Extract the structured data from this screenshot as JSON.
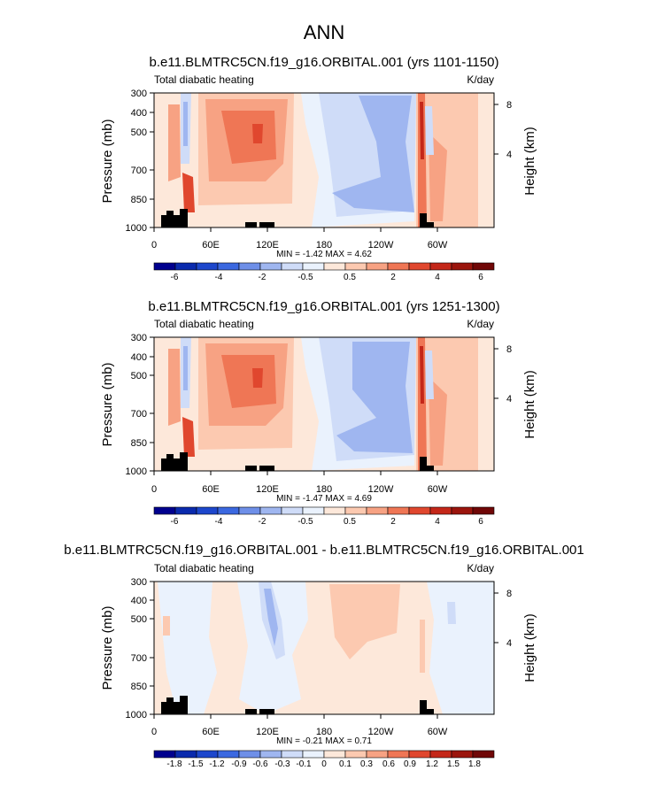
{
  "figure_title": "ANN",
  "chart_data": [
    {
      "type": "heatmap",
      "title": "b.e11.BLMTRC5CN.f19_g16.ORBITAL.001 (yrs 1101-1150)",
      "left_label": "Total diabatic heating",
      "units": "K/day",
      "ylabel": "Pressure (mb)",
      "right_label": "Height (km)",
      "x_ticks": [
        "0",
        "60E",
        "120E",
        "180",
        "120W",
        "60W"
      ],
      "y_ticks": [
        "300",
        "400",
        "500",
        "700",
        "850",
        "1000"
      ],
      "right_ticks": [
        "8",
        "4"
      ],
      "ylim": [
        1000,
        300
      ],
      "stats": "MIN = -1.42  MAX =  4.62",
      "min": -1.42,
      "max": 4.62,
      "colorbar_labels": [
        "-6",
        "-4",
        "-2",
        "-0.5",
        "0.5",
        "2",
        "4",
        "6"
      ],
      "colorbar_levels": [
        -6,
        -5,
        -4,
        -3,
        -2,
        -1,
        -0.5,
        0,
        0.5,
        1,
        2,
        3,
        4,
        5,
        6
      ]
    },
    {
      "type": "heatmap",
      "title": "b.e11.BLMTRC5CN.f19_g16.ORBITAL.001 (yrs 1251-1300)",
      "left_label": "Total diabatic heating",
      "units": "K/day",
      "ylabel": "Pressure (mb)",
      "right_label": "Height (km)",
      "x_ticks": [
        "0",
        "60E",
        "120E",
        "180",
        "120W",
        "60W"
      ],
      "y_ticks": [
        "300",
        "400",
        "500",
        "700",
        "850",
        "1000"
      ],
      "right_ticks": [
        "8",
        "4"
      ],
      "ylim": [
        1000,
        300
      ],
      "stats": "MIN = -1.47  MAX =  4.69",
      "min": -1.47,
      "max": 4.69,
      "colorbar_labels": [
        "-6",
        "-4",
        "-2",
        "-0.5",
        "0.5",
        "2",
        "4",
        "6"
      ],
      "colorbar_levels": [
        -6,
        -5,
        -4,
        -3,
        -2,
        -1,
        -0.5,
        0,
        0.5,
        1,
        2,
        3,
        4,
        5,
        6
      ]
    },
    {
      "type": "heatmap",
      "title": "b.e11.BLMTRC5CN.f19_g16.ORBITAL.001 - b.e11.BLMTRC5CN.f19_g16.ORBITAL.001",
      "left_label": "Total diabatic heating",
      "units": "K/day",
      "ylabel": "Pressure (mb)",
      "right_label": "Height (km)",
      "x_ticks": [
        "0",
        "60E",
        "120E",
        "180",
        "120W",
        "60W"
      ],
      "y_ticks": [
        "300",
        "400",
        "500",
        "700",
        "850",
        "1000"
      ],
      "right_ticks": [
        "8",
        "4"
      ],
      "ylim": [
        1000,
        300
      ],
      "stats": "MIN = -0.21  MAX =  0.71",
      "min": -0.21,
      "max": 0.71,
      "colorbar_labels": [
        "-1.8",
        "-1.5",
        "-1.2",
        "-0.9",
        "-0.6",
        "-0.3",
        "-0.1",
        "0",
        "0.1",
        "0.3",
        "0.6",
        "0.9",
        "1.2",
        "1.5",
        "1.8"
      ],
      "colorbar_levels": [
        -1.8,
        -1.5,
        -1.2,
        -0.9,
        -0.6,
        -0.3,
        -0.1,
        0,
        0.1,
        0.3,
        0.6,
        0.9,
        1.2,
        1.5,
        1.8
      ]
    }
  ],
  "palette": [
    "#00008e",
    "#0a2aad",
    "#1d47cc",
    "#3b68e0",
    "#6e8fe8",
    "#9fb6f0",
    "#cfdcf8",
    "#eaf2fd",
    "#fde8da",
    "#fcc9b0",
    "#f7a283",
    "#ef7655",
    "#e0472e",
    "#c42719",
    "#9b150d",
    "#700707"
  ]
}
